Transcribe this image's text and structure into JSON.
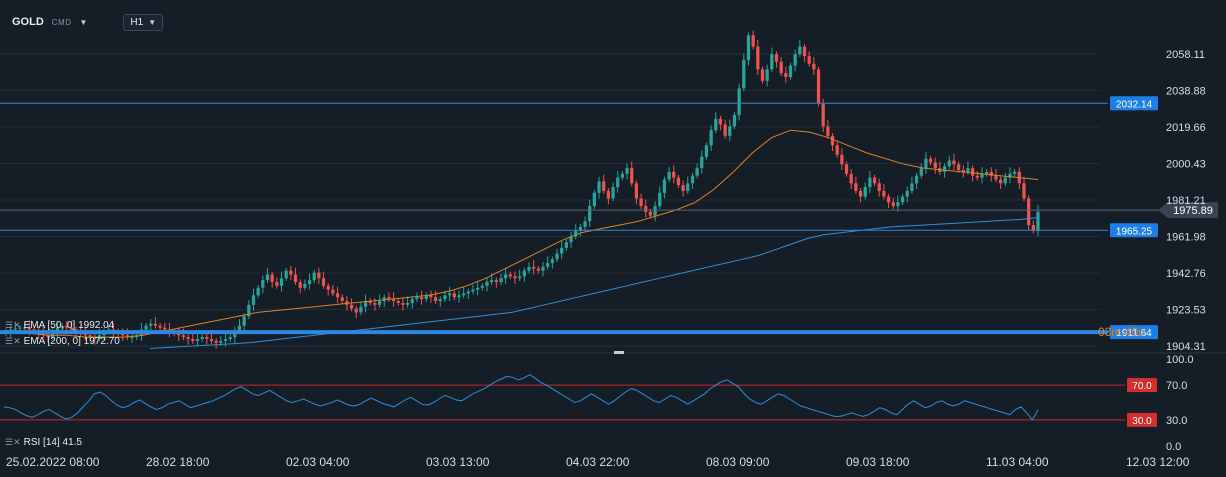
{
  "header": {
    "symbol": "GOLD",
    "symbol_type": "CMD",
    "timeframe": "H1"
  },
  "indicators": {
    "ema50": "EMA [50, 0] 1992.04",
    "ema200": "EMA [200, 0] 1972.70",
    "rsi": "RSI [14] 41.5"
  },
  "countdown": "03m 40s",
  "chart_data": [
    {
      "type": "candlestick",
      "title": "GOLD",
      "ylim": [
        1904.31,
        2072.0
      ],
      "y_ticks": [
        "2058.11",
        "2038.88",
        "2019.66",
        "2000.43",
        "1981.21",
        "1961.98",
        "1942.76",
        "1923.53",
        "1904.31"
      ],
      "x_ticks": [
        "25.02.2022 08:00",
        "28.02 18:00",
        "02.03 04:00",
        "03.03 13:00",
        "04.03 22:00",
        "08.03 09:00",
        "09.03 18:00",
        "11.03 04:00",
        "12.03 12:00"
      ],
      "horizontal_lines": [
        2032.14,
        1965.25,
        1911.64
      ],
      "current_price": 1975.89,
      "ohlc_close_path": [
        1912,
        1913,
        1913.5,
        1914,
        1914,
        1913,
        1912,
        1911,
        1910,
        1909,
        1912,
        1914,
        1915,
        1914,
        1913,
        1912,
        1911,
        1910,
        1909,
        1908,
        1910,
        1912,
        1913,
        1912,
        1911,
        1910,
        1909,
        1909,
        1910,
        1913,
        1915,
        1916,
        1915,
        1914,
        1913,
        1912,
        1911,
        1910,
        1909,
        1908,
        1907,
        1908,
        1909,
        1908,
        1907,
        1906,
        1907,
        1908,
        1909,
        1912,
        1915,
        1920,
        1926,
        1931,
        1935,
        1939,
        1942,
        1938,
        1936,
        1940,
        1944,
        1942,
        1938,
        1935,
        1937,
        1939,
        1943,
        1940,
        1936,
        1934,
        1932,
        1930,
        1928,
        1926,
        1924,
        1922,
        1925,
        1928,
        1927,
        1926,
        1928,
        1930,
        1929,
        1928,
        1927,
        1926,
        1927,
        1929,
        1930,
        1929,
        1931,
        1930,
        1928,
        1929,
        1931,
        1932,
        1930,
        1931,
        1932,
        1933,
        1934,
        1935,
        1936,
        1938,
        1939,
        1938,
        1940,
        1942,
        1941,
        1940,
        1941,
        1944,
        1946,
        1945,
        1944,
        1946,
        1948,
        1950,
        1953,
        1956,
        1959,
        1962,
        1965,
        1967,
        1970,
        1978,
        1985,
        1991,
        1986,
        1982,
        1988,
        1993,
        1995,
        1998,
        1990,
        1982,
        1978,
        1975,
        1973,
        1978,
        1985,
        1992,
        1996,
        1993,
        1989,
        1986,
        1990,
        1994,
        1998,
        2004,
        2010,
        2018,
        2024,
        2021,
        2015,
        2020,
        2026,
        2040,
        2055,
        2068,
        2062,
        2050,
        2044,
        2050,
        2058,
        2054,
        2048,
        2046,
        2052,
        2058,
        2062,
        2057,
        2053,
        2050,
        2032,
        2020,
        2015,
        2010,
        2005,
        2000,
        1995,
        1990,
        1986,
        1983,
        1988,
        1993,
        1990,
        1986,
        1983,
        1980,
        1978,
        1980,
        1983,
        1986,
        1990,
        1994,
        1998,
        2003,
        2001,
        1998,
        1996,
        1999,
        2002,
        2000,
        1997,
        1996,
        1998,
        1994,
        1993,
        1995,
        1996,
        1994,
        1992,
        1990,
        1993,
        1995,
        1996,
        1990,
        1982,
        1968,
        1965,
        1975
      ],
      "ema50_path": [
        1911,
        1911,
        1910,
        1910,
        1909,
        1909,
        1909,
        1910,
        1912,
        1914,
        1916,
        1918,
        1920,
        1922,
        1923,
        1924,
        1925,
        1926,
        1927,
        1928,
        1929,
        1930,
        1931,
        1933,
        1936,
        1940,
        1945,
        1950,
        1955,
        1960,
        1964,
        1966,
        1968,
        1970,
        1973,
        1976,
        1980,
        1987,
        1996,
        2006,
        2014,
        2018,
        2017,
        2014,
        2010,
        2006,
        2003,
        2000,
        1998,
        1997,
        1996,
        1995,
        1994,
        1993,
        1992
      ],
      "ema200_path": [
        1903,
        1903.5,
        1904,
        1904.5,
        1905,
        1905.5,
        1906,
        1907,
        1908,
        1909,
        1910,
        1911,
        1912,
        1913,
        1914,
        1915,
        1916,
        1917,
        1918,
        1919,
        1920,
        1921,
        1922,
        1924,
        1926,
        1928,
        1930,
        1932,
        1934,
        1936,
        1938,
        1940,
        1942,
        1944,
        1946,
        1948,
        1950,
        1952,
        1955,
        1958,
        1961,
        1963,
        1964,
        1965,
        1966,
        1967,
        1967.5,
        1968,
        1968.5,
        1969,
        1969.5,
        1970,
        1970.5,
        1971,
        1972
      ],
      "rsi": {
        "ylim": [
          0,
          100
        ],
        "y_ticks": [
          "100.0",
          "70.0",
          "30.0",
          "0.0"
        ],
        "levels": [
          70.0,
          30.0
        ],
        "path": [
          45,
          44,
          42,
          38,
          35,
          33,
          36,
          40,
          42,
          38,
          34,
          31,
          33,
          38,
          45,
          52,
          60,
          62,
          58,
          52,
          47,
          44,
          46,
          50,
          53,
          49,
          45,
          42,
          44,
          48,
          50,
          52,
          48,
          44,
          46,
          48,
          50,
          52,
          55,
          58,
          62,
          66,
          68,
          64,
          60,
          58,
          61,
          64,
          60,
          56,
          52,
          50,
          52,
          54,
          51,
          48,
          46,
          48,
          50,
          53,
          50,
          47,
          46,
          48,
          52,
          55,
          52,
          49,
          47,
          45,
          49,
          53,
          56,
          52,
          48,
          47,
          50,
          54,
          58,
          56,
          53,
          52,
          56,
          60,
          63,
          66,
          70,
          74,
          77,
          80,
          79,
          76,
          78,
          82,
          78,
          73,
          70,
          66,
          62,
          58,
          54,
          50,
          52,
          56,
          60,
          56,
          52,
          48,
          52,
          57,
          62,
          66,
          64,
          60,
          56,
          52,
          50,
          54,
          58,
          56,
          52,
          48,
          52,
          56,
          60,
          66,
          70,
          74,
          76,
          72,
          68,
          60,
          54,
          50,
          48,
          52,
          56,
          60,
          58,
          54,
          50,
          46,
          44,
          42,
          40,
          38,
          36,
          34,
          34,
          36,
          38,
          36,
          34,
          36,
          40,
          44,
          42,
          38,
          36,
          42,
          48,
          52,
          48,
          44,
          46,
          50,
          52,
          48,
          46,
          48,
          52,
          50,
          48,
          46,
          44,
          42,
          40,
          38,
          36,
          42,
          45,
          38,
          30,
          41.5
        ]
      }
    }
  ],
  "colors": {
    "background": "#151d27",
    "up": "#26a69a",
    "down": "#ef5350",
    "ema50": "#d9822b",
    "ema200": "#2e8fd8",
    "hline": "#2f86e0",
    "hline_label_bg": "#1e7ee8",
    "rsi_line": "#2e8fd8",
    "rsi_level": "#c62828",
    "grid": "#222c38"
  }
}
